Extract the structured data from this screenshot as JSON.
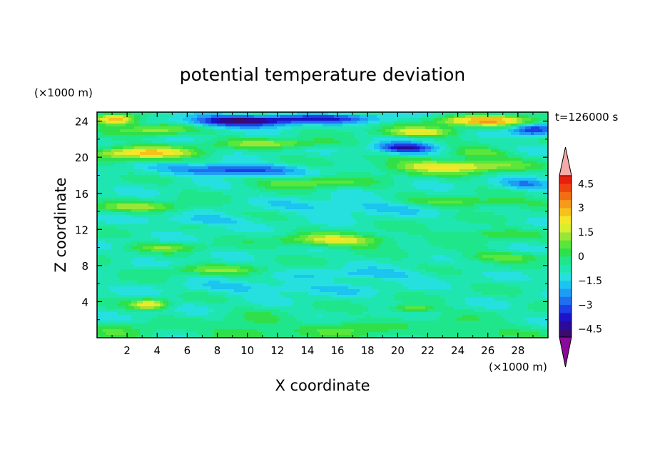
{
  "chart_data": {
    "type": "heatmap",
    "title": "potential temperature deviation",
    "xlabel": "X coordinate",
    "ylabel": "Z coordinate",
    "x_unit": "(×1000 m)",
    "y_unit": "(×1000 m)",
    "time_label": "t=126000 s",
    "xlim": [
      0,
      30
    ],
    "ylim": [
      0,
      25
    ],
    "x_ticks": [
      2,
      4,
      6,
      8,
      10,
      12,
      14,
      16,
      18,
      20,
      22,
      24,
      26,
      28
    ],
    "y_ticks": [
      4,
      8,
      12,
      16,
      20,
      24
    ],
    "colorbar": {
      "levels": [
        -5,
        -4.5,
        -4,
        -3.5,
        -3,
        -2.5,
        -2,
        -1.5,
        -1,
        -0.5,
        0,
        0.5,
        1,
        1.5,
        2,
        2.5,
        3,
        3.5,
        4,
        4.5,
        5
      ],
      "tick_labels": [
        "4.5",
        "3",
        "1.5",
        "0",
        "−1.5",
        "−3",
        "−4.5"
      ],
      "tick_values": [
        4.5,
        3,
        1.5,
        0,
        -1.5,
        -3,
        -4.5
      ],
      "colors": [
        "#3b0a6e",
        "#2a0a9a",
        "#1b14c8",
        "#1e3ee6",
        "#1f6ff0",
        "#1f9cf5",
        "#1cc4f0",
        "#26e0e0",
        "#1fe6b0",
        "#1fe68a",
        "#2fe04a",
        "#5ae63a",
        "#9ae636",
        "#d8ee2e",
        "#f5e62a",
        "#f5c21c",
        "#f59a1a",
        "#f26e14",
        "#ee4410",
        "#e81e10"
      ],
      "under_color": "#8a0a9a",
      "over_color": "#f4aaa8"
    },
    "features": [
      {
        "x": 1.2,
        "z": 24.2,
        "amp": 4.2,
        "sx": 1.4,
        "sz": 0.6
      },
      {
        "x": 9.5,
        "z": 24.0,
        "amp": -4.0,
        "sx": 3.5,
        "sz": 0.6
      },
      {
        "x": 15.0,
        "z": 24.3,
        "amp": -2.5,
        "sx": 4.0,
        "sz": 0.5
      },
      {
        "x": 26.0,
        "z": 24.0,
        "amp": 3.5,
        "sx": 3.5,
        "sz": 0.6
      },
      {
        "x": 21.5,
        "z": 22.8,
        "amp": 2.8,
        "sx": 2.5,
        "sz": 0.5
      },
      {
        "x": 29.0,
        "z": 23.0,
        "amp": -3.0,
        "sx": 1.5,
        "sz": 0.7
      },
      {
        "x": 4.0,
        "z": 23.0,
        "amp": 2.0,
        "sx": 2.5,
        "sz": 0.6
      },
      {
        "x": 3.0,
        "z": 20.5,
        "amp": 3.2,
        "sx": 3.5,
        "sz": 0.7
      },
      {
        "x": 20.5,
        "z": 21.0,
        "amp": -3.5,
        "sx": 2.0,
        "sz": 0.6
      },
      {
        "x": 12.0,
        "z": 21.5,
        "amp": 1.8,
        "sx": 4.0,
        "sz": 0.5
      },
      {
        "x": 25.5,
        "z": 20.5,
        "amp": 1.5,
        "sx": 2.0,
        "sz": 0.5
      },
      {
        "x": 9.0,
        "z": 18.6,
        "amp": -3.0,
        "sx": 4.0,
        "sz": 0.6
      },
      {
        "x": 23.5,
        "z": 19.0,
        "amp": 2.8,
        "sx": 4.5,
        "sz": 0.8
      },
      {
        "x": 14.0,
        "z": 17.2,
        "amp": 1.6,
        "sx": 3.5,
        "sz": 0.6
      },
      {
        "x": 28.5,
        "z": 17.0,
        "amp": -1.8,
        "sx": 2.0,
        "sz": 0.6
      },
      {
        "x": 3.0,
        "z": 14.5,
        "amp": 1.6,
        "sx": 3.5,
        "sz": 0.6
      },
      {
        "x": 25.0,
        "z": 15.0,
        "amp": 1.5,
        "sx": 4.5,
        "sz": 0.6
      },
      {
        "x": 17.0,
        "z": 14.5,
        "amp": -1.2,
        "sx": 5.0,
        "sz": 0.8
      },
      {
        "x": 7.0,
        "z": 13.0,
        "amp": -1.2,
        "sx": 3.0,
        "sz": 0.6
      },
      {
        "x": 16.0,
        "z": 10.8,
        "amp": 2.6,
        "sx": 3.5,
        "sz": 0.7
      },
      {
        "x": 26.0,
        "z": 11.5,
        "amp": 1.2,
        "sx": 2.5,
        "sz": 0.6
      },
      {
        "x": 4.5,
        "z": 10.0,
        "amp": 1.3,
        "sx": 2.5,
        "sz": 0.5
      },
      {
        "x": 27.0,
        "z": 9.0,
        "amp": 1.4,
        "sx": 3.0,
        "sz": 0.5
      },
      {
        "x": 8.0,
        "z": 7.5,
        "amp": 1.4,
        "sx": 3.5,
        "sz": 0.5
      },
      {
        "x": 18.0,
        "z": 7.0,
        "amp": -1.2,
        "sx": 4.0,
        "sz": 0.6
      },
      {
        "x": 3.5,
        "z": 3.7,
        "amp": 3.0,
        "sx": 1.2,
        "sz": 0.5
      },
      {
        "x": 21.0,
        "z": 3.2,
        "amp": 2.0,
        "sx": 1.5,
        "sz": 0.4
      },
      {
        "x": 10.5,
        "z": 1.5,
        "amp": 0.6,
        "sx": 2.5,
        "sz": 1.2
      },
      {
        "x": 16.0,
        "z": 1.2,
        "amp": 0.7,
        "sx": 2.0,
        "sz": 1.0
      },
      {
        "x": 23.5,
        "z": 1.5,
        "amp": 0.6,
        "sx": 1.5,
        "sz": 1.0
      },
      {
        "x": 12.0,
        "z": 5.5,
        "amp": -1.0,
        "sx": 6.0,
        "sz": 0.7
      }
    ]
  }
}
